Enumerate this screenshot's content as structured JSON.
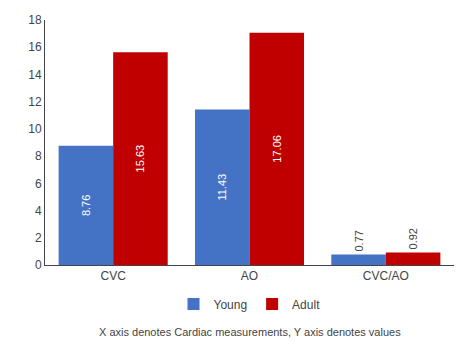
{
  "chart_data": {
    "type": "bar",
    "categories": [
      "CVC",
      "AO",
      "CVC/AO"
    ],
    "series": [
      {
        "name": "Young",
        "color": "#4472C4",
        "values": [
          8.76,
          11.43,
          0.77
        ]
      },
      {
        "name": "Adult",
        "color": "#C00000",
        "values": [
          15.63,
          17.06,
          0.92
        ]
      }
    ],
    "ylim": [
      0,
      18
    ],
    "yticks": [
      0,
      2,
      4,
      6,
      8,
      10,
      12,
      14,
      16,
      18
    ],
    "grid": false,
    "legend": "bottom",
    "data_labels": true,
    "annotations": [
      "X axis denotes Cardiac measurements, Y axis denotes values"
    ]
  }
}
